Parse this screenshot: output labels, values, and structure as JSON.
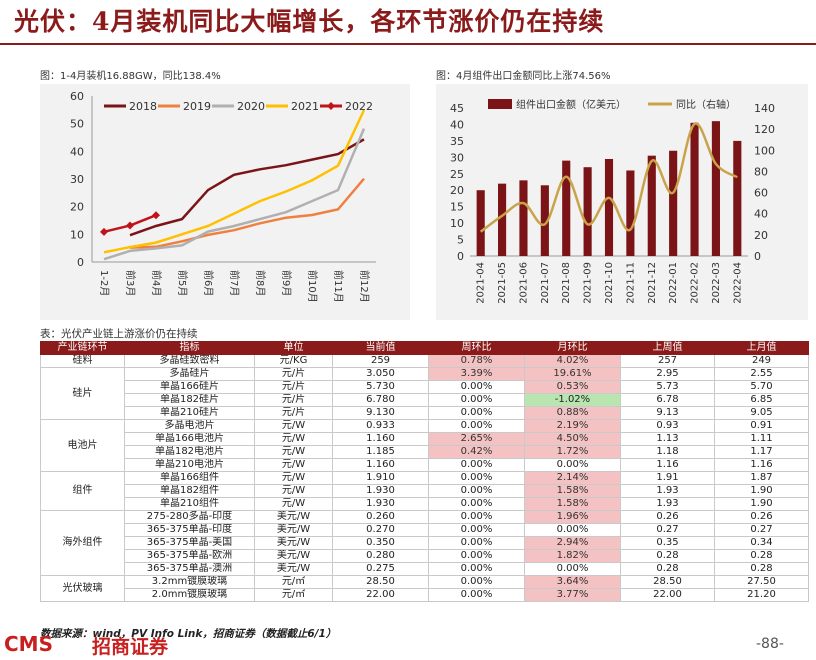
{
  "title": "光伏：4月装机同比大幅增长，各环节涨价仍在持续",
  "captions": {
    "left": "图：1-4月装机16.88GW，同比138.4%",
    "right": "图：4月组件出口金额同比上涨74.56%",
    "table": "表：光伏产业链上游涨价仍在持续"
  },
  "chart_data": [
    {
      "type": "line",
      "categories": [
        "1-2月",
        "前3月",
        "前4月",
        "前5月",
        "前6月",
        "前7月",
        "前8月",
        "前9月",
        "前10月",
        "前11月",
        "前12月"
      ],
      "ylim": [
        0,
        60
      ],
      "yticks": [
        0,
        10,
        20,
        30,
        40,
        50,
        60
      ],
      "legend_position": "top",
      "grid": false,
      "series": [
        {
          "name": "2018",
          "color": "#7b1416",
          "values": [
            null,
            9.7,
            13,
            15.5,
            26,
            31.5,
            33.5,
            35,
            37,
            39,
            44.3
          ]
        },
        {
          "name": "2019",
          "color": "#f08040",
          "values": [
            null,
            5.2,
            5.5,
            7.5,
            9.8,
            11.5,
            14,
            16,
            17,
            19,
            30.1
          ]
        },
        {
          "name": "2020",
          "color": "#b0b0b0",
          "values": [
            1,
            4,
            4.9,
            6,
            11,
            13,
            15.5,
            18,
            22,
            26,
            48.2
          ]
        },
        {
          "name": "2021",
          "color": "#ffc000",
          "values": [
            3.5,
            5.4,
            7,
            10,
            13,
            17.5,
            22,
            25.5,
            29.5,
            34.8,
            54.9
          ]
        },
        {
          "name": "2022",
          "color": "#c0141c",
          "values": [
            10.9,
            13.2,
            16.9,
            null,
            null,
            null,
            null,
            null,
            null,
            null,
            null
          ]
        }
      ]
    },
    {
      "type": "bar",
      "categories": [
        "2021-04",
        "2021-05",
        "2021-06",
        "2021-07",
        "2021-08",
        "2021-09",
        "2021-10",
        "2021-11",
        "2021-12",
        "2022-01",
        "2022-02",
        "2022-03",
        "2022-04"
      ],
      "ylim": [
        0,
        45
      ],
      "yticks": [
        0,
        5,
        10,
        15,
        20,
        25,
        30,
        35,
        40,
        45
      ],
      "y2lim": [
        0,
        140
      ],
      "y2ticks": [
        0,
        20,
        40,
        60,
        80,
        100,
        120,
        140
      ],
      "legend_position": "top",
      "grid": false,
      "series": [
        {
          "name": "组件出口金额（亿美元）",
          "axis": "left",
          "color": "#7b1416",
          "values": [
            20,
            22,
            23,
            21.5,
            29,
            27,
            29.5,
            26,
            30.5,
            32,
            40.5,
            41,
            35
          ]
        },
        {
          "name": "同比（右轴）",
          "axis": "right",
          "color": "#c9a34a",
          "values": [
            23,
            38,
            50,
            30,
            75,
            30,
            55,
            25,
            90,
            60,
            125,
            87,
            74.56
          ]
        }
      ]
    }
  ],
  "table": {
    "headers": [
      "产业链环节",
      "指标",
      "单位",
      "当前值",
      "周环比",
      "月环比",
      "上周值",
      "上月值"
    ],
    "rows": [
      {
        "seg": "硅料",
        "name": "多晶硅致密料",
        "unit": "元/KG",
        "cur": "259",
        "wow": "0.78%",
        "mom": "4.02%",
        "lw": "257",
        "lm": "249",
        "wc": "red",
        "mc": "red"
      },
      {
        "seg": "",
        "name": "多晶硅片",
        "unit": "元/片",
        "cur": "3.050",
        "wow": "3.39%",
        "mom": "19.61%",
        "lw": "2.95",
        "lm": "2.55",
        "wc": "red",
        "mc": "red"
      },
      {
        "seg": "",
        "name": "单晶166硅片",
        "unit": "元/片",
        "cur": "5.730",
        "wow": "0.00%",
        "mom": "0.53%",
        "lw": "5.73",
        "lm": "5.70",
        "wc": "",
        "mc": "red"
      },
      {
        "seg": "",
        "name": "单晶182硅片",
        "unit": "元/片",
        "cur": "6.780",
        "wow": "0.00%",
        "mom": "-1.02%",
        "lw": "6.78",
        "lm": "6.85",
        "wc": "",
        "mc": "green"
      },
      {
        "seg": "",
        "name": "单晶210硅片",
        "unit": "元/片",
        "cur": "9.130",
        "wow": "0.00%",
        "mom": "0.88%",
        "lw": "9.13",
        "lm": "9.05",
        "wc": "",
        "mc": "red"
      },
      {
        "seg": "",
        "name": "多晶电池片",
        "unit": "元/W",
        "cur": "0.933",
        "wow": "0.00%",
        "mom": "2.19%",
        "lw": "0.93",
        "lm": "0.91",
        "wc": "",
        "mc": "red"
      },
      {
        "seg": "",
        "name": "单晶166电池片",
        "unit": "元/W",
        "cur": "1.160",
        "wow": "2.65%",
        "mom": "4.50%",
        "lw": "1.13",
        "lm": "1.11",
        "wc": "red",
        "mc": "red"
      },
      {
        "seg": "",
        "name": "单晶182电池片",
        "unit": "元/W",
        "cur": "1.185",
        "wow": "0.42%",
        "mom": "1.72%",
        "lw": "1.18",
        "lm": "1.17",
        "wc": "red",
        "mc": "red"
      },
      {
        "seg": "",
        "name": "单晶210电池片",
        "unit": "元/W",
        "cur": "1.160",
        "wow": "0.00%",
        "mom": "0.00%",
        "lw": "1.16",
        "lm": "1.16",
        "wc": "",
        "mc": ""
      },
      {
        "seg": "",
        "name": "单晶166组件",
        "unit": "元/W",
        "cur": "1.910",
        "wow": "0.00%",
        "mom": "2.14%",
        "lw": "1.91",
        "lm": "1.87",
        "wc": "",
        "mc": "red"
      },
      {
        "seg": "",
        "name": "单晶182组件",
        "unit": "元/W",
        "cur": "1.930",
        "wow": "0.00%",
        "mom": "1.58%",
        "lw": "1.93",
        "lm": "1.90",
        "wc": "",
        "mc": "red"
      },
      {
        "seg": "",
        "name": "单晶210组件",
        "unit": "元/W",
        "cur": "1.930",
        "wow": "0.00%",
        "mom": "1.58%",
        "lw": "1.93",
        "lm": "1.90",
        "wc": "",
        "mc": "red"
      },
      {
        "seg": "",
        "name": "275-280多晶-印度",
        "unit": "美元/W",
        "cur": "0.260",
        "wow": "0.00%",
        "mom": "1.96%",
        "lw": "0.26",
        "lm": "0.26",
        "wc": "",
        "mc": "red"
      },
      {
        "seg": "",
        "name": "365-375单晶-印度",
        "unit": "美元/W",
        "cur": "0.270",
        "wow": "0.00%",
        "mom": "0.00%",
        "lw": "0.27",
        "lm": "0.27",
        "wc": "",
        "mc": ""
      },
      {
        "seg": "",
        "name": "365-375单晶-美国",
        "unit": "美元/W",
        "cur": "0.350",
        "wow": "0.00%",
        "mom": "2.94%",
        "lw": "0.35",
        "lm": "0.34",
        "wc": "",
        "mc": "red"
      },
      {
        "seg": "",
        "name": "365-375单晶-欧洲",
        "unit": "美元/W",
        "cur": "0.280",
        "wow": "0.00%",
        "mom": "1.82%",
        "lw": "0.28",
        "lm": "0.28",
        "wc": "",
        "mc": "red"
      },
      {
        "seg": "",
        "name": "365-375单晶-澳洲",
        "unit": "美元/W",
        "cur": "0.275",
        "wow": "0.00%",
        "mom": "0.00%",
        "lw": "0.28",
        "lm": "0.28",
        "wc": "",
        "mc": ""
      },
      {
        "seg": "",
        "name": "3.2mm镀膜玻璃",
        "unit": "元/㎡",
        "cur": "28.50",
        "wow": "0.00%",
        "mom": "3.64%",
        "lw": "28.50",
        "lm": "27.50",
        "wc": "",
        "mc": "red"
      },
      {
        "seg": "",
        "name": "2.0mm镀膜玻璃",
        "unit": "元/㎡",
        "cur": "22.00",
        "wow": "0.00%",
        "mom": "3.77%",
        "lw": "22.00",
        "lm": "21.20",
        "wc": "",
        "mc": "red"
      }
    ],
    "segments": [
      {
        "label": "硅料",
        "rowspan": 1
      },
      {
        "label": "硅片",
        "rowspan": 4
      },
      {
        "label": "电池片",
        "rowspan": 4
      },
      {
        "label": "组件",
        "rowspan": 3
      },
      {
        "label": "海外组件",
        "rowspan": 5
      },
      {
        "label": "光伏玻璃",
        "rowspan": 2
      }
    ]
  },
  "footer": {
    "source": "数据来源：wind，PV Info Link，招商证券（数据截止6/1）",
    "logo": "CMS",
    "logo_cn": "招商证券",
    "page": "-88-"
  }
}
